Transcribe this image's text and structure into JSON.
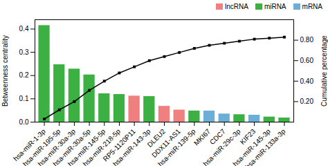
{
  "chart_data": {
    "type": "bar",
    "categories": [
      "hsa-miR-1-3p",
      "hsa-miR-195-5p",
      "hsa-miR-30a-3p",
      "hsa-miR-30a-5p",
      "hsa-miR-145-5p",
      "hsa-miR-218-5p",
      "RP5-1120P11",
      "hsa-miR-143-3p",
      "DLEU2",
      "DDX11-AS1",
      "hsa-miR-139-5p",
      "MKI67",
      "CDC7",
      "hsa-miR-29c-3p",
      "KIF23",
      "hsa-miR-145-3p",
      "hsa-miR-133a-3p"
    ],
    "series": [
      {
        "name": "lncRNA",
        "type": "bar",
        "color": "#f08080",
        "values": [
          null,
          null,
          null,
          null,
          null,
          null,
          0.112,
          null,
          0.068,
          0.052,
          null,
          null,
          null,
          null,
          null,
          null,
          null
        ]
      },
      {
        "name": "miRNA",
        "type": "bar",
        "color": "#3cb043",
        "values": [
          0.415,
          0.247,
          0.228,
          0.203,
          0.122,
          0.119,
          null,
          0.11,
          null,
          null,
          0.048,
          null,
          null,
          0.032,
          null,
          0.022,
          0.018
        ]
      },
      {
        "name": "mRNA",
        "type": "bar",
        "color": "#6baed6",
        "values": [
          null,
          null,
          null,
          null,
          null,
          null,
          null,
          null,
          null,
          null,
          null,
          0.048,
          0.035,
          null,
          0.03,
          null,
          null
        ]
      },
      {
        "type": "line",
        "axis": "y2",
        "color": "#000000",
        "marker": "square",
        "values": [
          0.03,
          0.12,
          0.2,
          0.31,
          0.4,
          0.48,
          0.54,
          0.6,
          0.64,
          0.68,
          0.72,
          0.75,
          0.77,
          0.79,
          0.81,
          0.82,
          0.83
        ]
      }
    ],
    "ylabel": "Betweenness centrality",
    "y2label": "Cumulative percentage",
    "ylim": [
      0,
      0.44
    ],
    "yticks": [
      {
        "value": 0,
        "label": "0.0"
      },
      0.1,
      0.2,
      0.3,
      0.4
    ],
    "y2lim": [
      0.0,
      1.0
    ],
    "y2ticks": [
      {
        "value": 0.2,
        "label": "0.20"
      },
      {
        "value": 0.4,
        "label": "0.40"
      },
      {
        "value": 0.6,
        "label": "0.60"
      },
      {
        "value": 0.8,
        "label": "0.80"
      }
    ],
    "legend": "right"
  }
}
